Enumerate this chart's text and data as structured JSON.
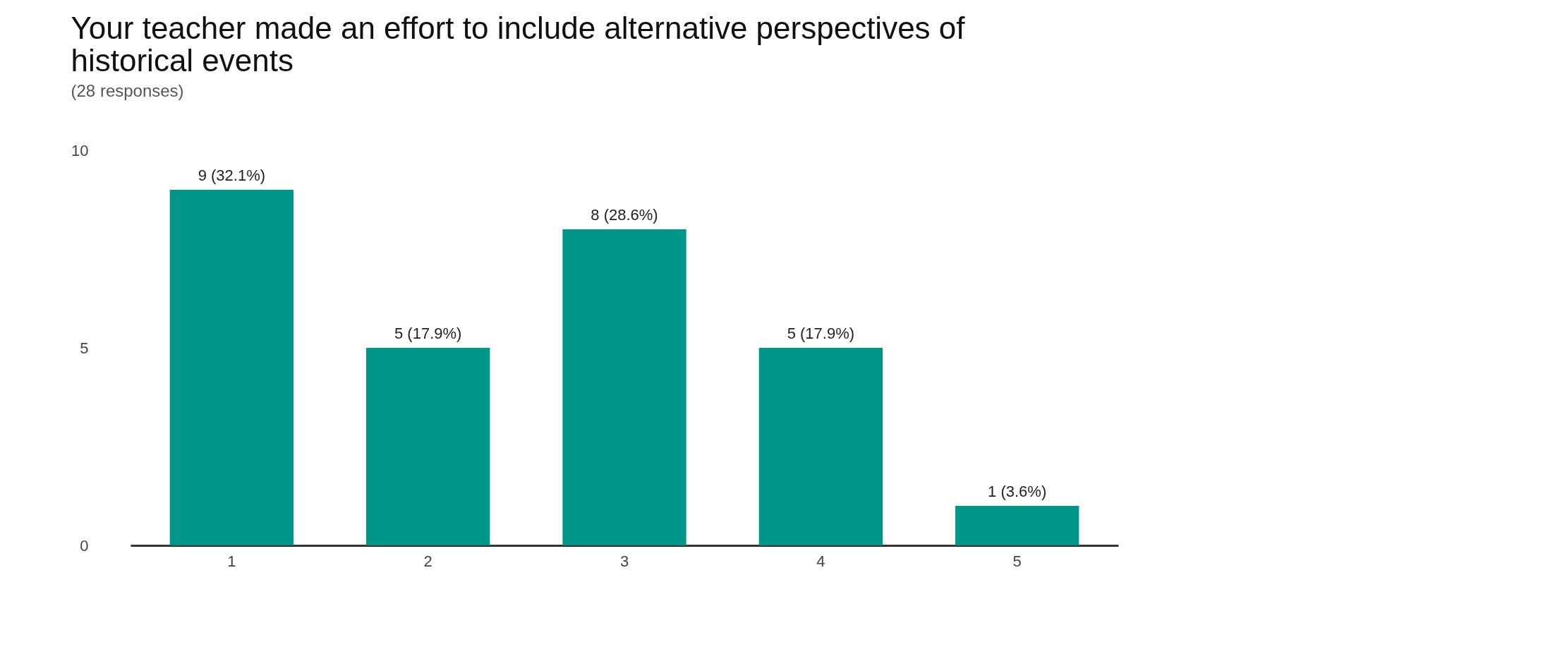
{
  "chart_data": {
    "type": "bar",
    "title": "Your teacher made an effort to include alternative perspectives of historical events",
    "subtitle": "(28 responses)",
    "categories": [
      "1",
      "2",
      "3",
      "4",
      "5"
    ],
    "values": [
      9,
      5,
      8,
      5,
      1
    ],
    "value_labels": [
      "9 (32.1%)",
      "5 (17.9%)",
      "8 (28.6%)",
      "5 (17.9%)",
      "1 (3.6%)"
    ],
    "color": "#009688",
    "ylim": [
      0,
      10
    ],
    "yticks": [
      0,
      5,
      10
    ],
    "grid": false
  }
}
